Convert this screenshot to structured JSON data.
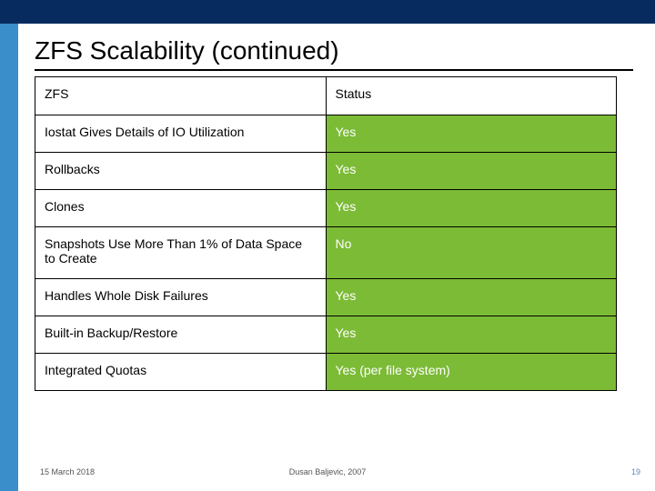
{
  "title": "ZFS Scalability (continued)",
  "table": {
    "header_left": "ZFS",
    "header_right": "Status",
    "right_bg": "#7cbb36",
    "right_color": "#ffffff",
    "rows": [
      {
        "left": "Iostat Gives Details of IO Utilization",
        "right": "Yes"
      },
      {
        "left": "Rollbacks",
        "right": "Yes"
      },
      {
        "left": "Clones",
        "right": "Yes"
      },
      {
        "left": "Snapshots Use More Than 1% of Data Space to Create",
        "right": "No"
      },
      {
        "left": "Handles Whole Disk Failures",
        "right": "Yes"
      },
      {
        "left": "Built-in Backup/Restore",
        "right": "Yes"
      },
      {
        "left": "Integrated Quotas",
        "right": "Yes (per file system)"
      }
    ]
  },
  "footer": {
    "date": "15 March 2018",
    "center": "Dusan Baljevic, 2007",
    "page": "19"
  }
}
